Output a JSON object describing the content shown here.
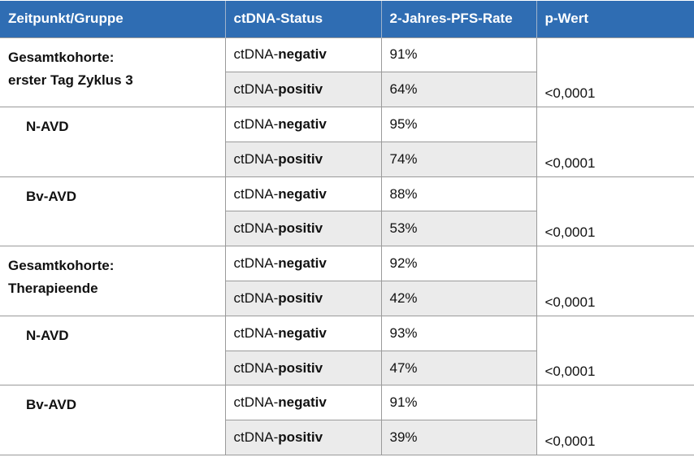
{
  "header": [
    "Zeitpunkt/Gruppe",
    "ctDNA-Status",
    "2-Jahres-PFS-Rate",
    "p-Wert"
  ],
  "groups": [
    {
      "label": [
        "Gesamtkohorte:",
        "erster Tag Zyklus 3"
      ],
      "rows": [
        {
          "status": [
            "ctDNA-",
            "negativ"
          ],
          "rate": "91%"
        },
        {
          "status": [
            "ctDNA-",
            "positiv"
          ],
          "rate": "64%"
        }
      ],
      "p": "<0,0001"
    },
    {
      "label": [
        "N-AVD"
      ],
      "rows": [
        {
          "status": [
            "ctDNA-",
            "negativ"
          ],
          "rate": "95%"
        },
        {
          "status": [
            "ctDNA-",
            "positiv"
          ],
          "rate": "74%"
        }
      ],
      "p": "<0,0001"
    },
    {
      "label": [
        "Bv-AVD"
      ],
      "rows": [
        {
          "status": [
            "ctDNA-",
            "negativ"
          ],
          "rate": "88%"
        },
        {
          "status": [
            "ctDNA-",
            "positiv"
          ],
          "rate": "53%"
        }
      ],
      "p": "<0,0001"
    },
    {
      "label": [
        "Gesamtkohorte:",
        "Therapieende"
      ],
      "rows": [
        {
          "status": [
            "ctDNA-",
            "negativ"
          ],
          "rate": "92%"
        },
        {
          "status": [
            "ctDNA-",
            "positiv"
          ],
          "rate": "42%"
        }
      ],
      "p": "<0,0001"
    },
    {
      "label": [
        "N-AVD"
      ],
      "rows": [
        {
          "status": [
            "ctDNA-",
            "negativ"
          ],
          "rate": "93%"
        },
        {
          "status": [
            "ctDNA-",
            "positiv"
          ],
          "rate": "47%"
        }
      ],
      "p": "<0,0001"
    },
    {
      "label": [
        "Bv-AVD"
      ],
      "rows": [
        {
          "status": [
            "ctDNA-",
            "negativ"
          ],
          "rate": "91%"
        },
        {
          "status": [
            "ctDNA-",
            "positiv"
          ],
          "rate": "39%"
        }
      ],
      "p": "<0,0001"
    }
  ]
}
